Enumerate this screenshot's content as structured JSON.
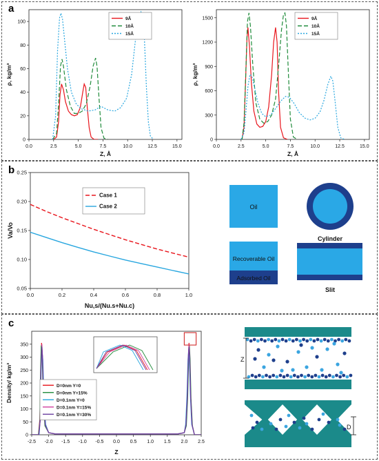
{
  "panels": {
    "a": "a",
    "b": "b",
    "c": "c"
  },
  "chart_data": [
    {
      "id": "a1",
      "type": "line",
      "xlabel": "Z, Å",
      "ylabel": "ρ, kg/m³",
      "xlim": [
        0,
        15.5
      ],
      "ylim": [
        0,
        110
      ],
      "xticks": [
        "0.0",
        "2.5",
        "5.0",
        "7.5",
        "10.0",
        "12.5",
        "15.0"
      ],
      "yticks": [
        "0",
        "20",
        "40",
        "60",
        "80",
        "100"
      ],
      "legend_position": "top-right",
      "series": [
        {
          "name": "9Å",
          "color": "#e8141b",
          "dash": "solid",
          "x": [
            2.5,
            2.8,
            3.0,
            3.15,
            3.3,
            3.5,
            3.7,
            4.0,
            4.3,
            4.6,
            4.9,
            5.2,
            5.45,
            5.6,
            5.75,
            5.9,
            6.1,
            6.3,
            6.6,
            7.0
          ],
          "y": [
            0,
            2,
            15,
            38,
            47,
            42,
            32,
            24,
            21,
            20,
            21,
            27,
            40,
            47,
            44,
            28,
            10,
            2,
            0,
            0
          ]
        },
        {
          "name": "10Å",
          "color": "#1f8b3a",
          "dash": "dashed",
          "x": [
            2.4,
            2.8,
            3.0,
            3.2,
            3.35,
            3.5,
            3.8,
            4.2,
            4.6,
            5.0,
            5.4,
            5.8,
            6.2,
            6.5,
            6.75,
            6.9,
            7.1,
            7.3,
            7.6,
            8.0
          ],
          "y": [
            0,
            5,
            30,
            62,
            68,
            62,
            42,
            28,
            22,
            22,
            24,
            30,
            45,
            62,
            69,
            62,
            35,
            10,
            1,
            0
          ]
        },
        {
          "name": "15Å",
          "color": "#27a6df",
          "dash": "dotted",
          "x": [
            2.4,
            2.7,
            2.9,
            3.1,
            3.25,
            3.4,
            3.6,
            3.9,
            4.3,
            4.8,
            5.3,
            6.0,
            6.7,
            7.3,
            8.0,
            8.7,
            9.3,
            9.9,
            10.4,
            10.8,
            11.1,
            11.35,
            11.55,
            11.7,
            11.9,
            12.1,
            12.3,
            12.6
          ],
          "y": [
            0,
            20,
            75,
            103,
            107,
            102,
            85,
            60,
            40,
            30,
            26,
            24,
            25,
            28,
            25,
            24,
            27,
            35,
            55,
            85,
            100,
            108,
            104,
            85,
            45,
            15,
            3,
            0
          ]
        }
      ]
    },
    {
      "id": "a2",
      "type": "line",
      "xlabel": "Z, Å",
      "ylabel": "ρ, kg/m³",
      "xlim": [
        0,
        15.5
      ],
      "ylim": [
        0,
        1600
      ],
      "xticks": [
        "0.0",
        "2.5",
        "5.0",
        "7.5",
        "10.0",
        "12.5",
        "15.0"
      ],
      "yticks": [
        "0",
        "300",
        "600",
        "900",
        "1200",
        "1500"
      ],
      "legend_position": "top-right",
      "series": [
        {
          "name": "9Å",
          "color": "#e8141b",
          "dash": "solid",
          "x": [
            2.6,
            2.8,
            2.95,
            3.1,
            3.2,
            3.35,
            3.55,
            3.8,
            4.1,
            4.4,
            4.7,
            5.0,
            5.3,
            5.6,
            5.8,
            6.0,
            6.15,
            6.3,
            6.5,
            6.8,
            7.2
          ],
          "y": [
            0,
            150,
            700,
            1250,
            1380,
            1150,
            700,
            350,
            190,
            150,
            160,
            220,
            400,
            800,
            1200,
            1380,
            1200,
            600,
            150,
            20,
            0
          ]
        },
        {
          "name": "10Å",
          "color": "#1f8b3a",
          "dash": "dashed",
          "x": [
            2.6,
            2.8,
            3.0,
            3.15,
            3.3,
            3.45,
            3.7,
            4.0,
            4.4,
            4.8,
            5.2,
            5.6,
            6.0,
            6.3,
            6.6,
            6.8,
            6.95,
            7.1,
            7.3,
            7.5,
            7.8,
            8.2
          ],
          "y": [
            0,
            200,
            900,
            1450,
            1560,
            1400,
            900,
            450,
            250,
            200,
            220,
            300,
            500,
            900,
            1350,
            1540,
            1560,
            1400,
            800,
            250,
            30,
            0
          ]
        },
        {
          "name": "15Å",
          "color": "#27a6df",
          "dash": "dotted",
          "x": [
            2.5,
            2.8,
            3.0,
            3.2,
            3.4,
            3.6,
            3.9,
            4.2,
            4.6,
            5.0,
            5.5,
            6.0,
            6.5,
            7.0,
            7.4,
            7.9,
            8.4,
            9.0,
            9.5,
            10.0,
            10.5,
            10.9,
            11.3,
            11.6,
            11.8,
            12.0,
            12.3,
            12.6,
            13.0
          ],
          "y": [
            0,
            80,
            350,
            650,
            800,
            780,
            620,
            450,
            320,
            280,
            300,
            380,
            470,
            530,
            520,
            440,
            330,
            260,
            240,
            260,
            340,
            480,
            680,
            780,
            720,
            500,
            150,
            20,
            0
          ]
        }
      ]
    },
    {
      "id": "b",
      "type": "line",
      "xlabel": "Nu,s/(Nu.s+Nu.c)",
      "ylabel": "Va/Vo",
      "xlim": [
        0,
        1.0
      ],
      "ylim": [
        0.05,
        0.25
      ],
      "xticks": [
        "0.0",
        "0.2",
        "0.4",
        "0.6",
        "0.8",
        "1.0"
      ],
      "yticks": [
        "0.05",
        "0.10",
        "0.15",
        "0.20",
        "0.25"
      ],
      "legend_position": "top-center",
      "series": [
        {
          "name": "Case 1",
          "color": "#e8141b",
          "dash": "dashed",
          "x": [
            0,
            0.1,
            0.2,
            0.3,
            0.4,
            0.5,
            0.6,
            0.7,
            0.8,
            0.9,
            1.0
          ],
          "y": [
            0.195,
            0.183,
            0.172,
            0.162,
            0.152,
            0.143,
            0.134,
            0.126,
            0.118,
            0.111,
            0.104
          ]
        },
        {
          "name": "Case 2",
          "color": "#27a6df",
          "dash": "solid",
          "x": [
            0,
            0.1,
            0.2,
            0.3,
            0.4,
            0.5,
            0.6,
            0.7,
            0.8,
            0.9,
            1.0
          ],
          "y": [
            0.147,
            0.138,
            0.129,
            0.121,
            0.113,
            0.106,
            0.099,
            0.093,
            0.087,
            0.081,
            0.075
          ]
        }
      ]
    },
    {
      "id": "c",
      "type": "line",
      "xlabel": "Z",
      "ylabel": "Density/ kg/m³",
      "xlim": [
        -2.5,
        2.5
      ],
      "ylim": [
        0,
        400
      ],
      "xticks": [
        "-2.5",
        "-2.0",
        "-1.5",
        "-1.0",
        "-0.5",
        "0.0",
        "0.5",
        "1.0",
        "1.5",
        "2.0",
        "2.5"
      ],
      "yticks": [
        "0",
        "50",
        "100",
        "150",
        "200",
        "250",
        "300",
        "350"
      ],
      "legend_position": "center-left",
      "series": [
        {
          "name": "D=0nm Y=0",
          "color": "#e8141b",
          "dash": "solid",
          "x": [
            -2.5,
            -2.3,
            -2.26,
            -2.23,
            -2.21,
            -2.18,
            -2.15,
            -2.1,
            -2.0,
            -1.8,
            1.8,
            2.0,
            2.05,
            2.09,
            2.12,
            2.14,
            2.16,
            2.19,
            2.23,
            2.3,
            2.5
          ],
          "y": [
            0,
            0,
            60,
            250,
            355,
            300,
            150,
            40,
            8,
            3,
            3,
            8,
            40,
            150,
            300,
            355,
            300,
            150,
            40,
            0,
            0
          ]
        },
        {
          "name": "D=0nm Y=15%",
          "color": "#1f8b3a",
          "dash": "solid",
          "x": [
            -2.5,
            -2.3,
            -2.26,
            -2.24,
            -2.22,
            -2.19,
            -2.16,
            -2.11,
            -2.0,
            -1.8,
            1.8,
            2.0,
            2.06,
            2.1,
            2.13,
            2.15,
            2.17,
            2.2,
            2.24,
            2.3,
            2.5
          ],
          "y": [
            0,
            0,
            50,
            240,
            345,
            295,
            140,
            35,
            8,
            3,
            3,
            8,
            35,
            140,
            295,
            345,
            295,
            140,
            35,
            0,
            0
          ]
        },
        {
          "name": "D=0.1nm Y=0",
          "color": "#27a6df",
          "dash": "solid",
          "x": [
            -2.5,
            -2.28,
            -2.25,
            -2.22,
            -2.2,
            -2.17,
            -2.14,
            -2.09,
            -2.0,
            -1.8,
            1.8,
            2.0,
            2.04,
            2.08,
            2.11,
            2.13,
            2.15,
            2.18,
            2.22,
            2.3,
            2.5
          ],
          "y": [
            0,
            0,
            60,
            260,
            330,
            290,
            150,
            40,
            8,
            3,
            3,
            8,
            40,
            150,
            290,
            330,
            290,
            150,
            40,
            0,
            0
          ]
        },
        {
          "name": "D=0.1nm Y=15%",
          "color": "#d13ea0",
          "dash": "solid",
          "x": [
            -2.5,
            -2.29,
            -2.25,
            -2.23,
            -2.2,
            -2.18,
            -2.15,
            -2.1,
            -2.0,
            -1.8,
            1.8,
            2.0,
            2.05,
            2.09,
            2.12,
            2.14,
            2.16,
            2.19,
            2.23,
            2.3,
            2.5
          ],
          "y": [
            0,
            0,
            55,
            250,
            350,
            300,
            145,
            38,
            8,
            3,
            3,
            8,
            38,
            145,
            300,
            350,
            300,
            145,
            38,
            0,
            0
          ]
        },
        {
          "name": "D=0.1nm Y=30%",
          "color": "#6b3fa0",
          "dash": "solid",
          "x": [
            -2.5,
            -2.29,
            -2.25,
            -2.23,
            -2.2,
            -2.18,
            -2.15,
            -2.1,
            -2.0,
            -1.8,
            1.8,
            2.0,
            2.05,
            2.09,
            2.12,
            2.14,
            2.16,
            2.19,
            2.23,
            2.3,
            2.5
          ],
          "y": [
            0,
            0,
            55,
            245,
            340,
            295,
            145,
            38,
            8,
            3,
            3,
            8,
            38,
            145,
            295,
            340,
            295,
            145,
            38,
            0,
            0
          ]
        }
      ]
    }
  ],
  "schematic_b": {
    "oil_label": "Oil",
    "cylinder_label": "Cylinder",
    "recoverable_label": "Recoverable Oil",
    "adsorbed_label": "Adsorbed Oil",
    "slit_label": "Slit",
    "light_blue": "#2aa8e6",
    "dark_blue": "#1e3f8c"
  },
  "schematic_c": {
    "z_label": "Z",
    "d_label": "D",
    "wall_color": "#1b8a8a",
    "molecule_dark": "#1e3f8c",
    "molecule_light": "#3ba5e0"
  }
}
